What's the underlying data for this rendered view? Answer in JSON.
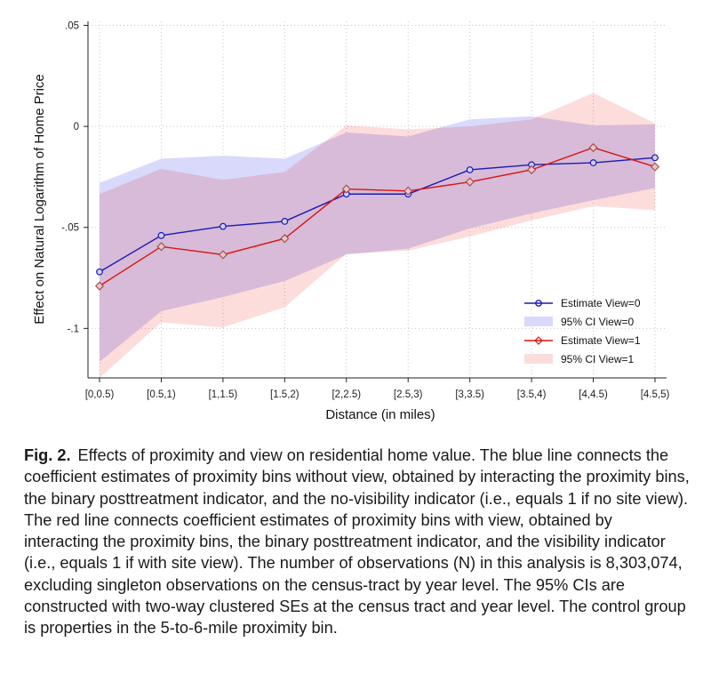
{
  "chart_data": {
    "type": "line",
    "xlabel": "Distance (in miles)",
    "ylabel": "Effect on Natural Logarithm of Home Price",
    "categories": [
      "[0,0.5)",
      "[0.5,1)",
      "[1,1.5)",
      "[1.5,2)",
      "[2,2.5)",
      "[2.5,3)",
      "[3,3.5)",
      "[3.5,4)",
      "[4,4.5)",
      "[4.5,5)"
    ],
    "ylim": [
      -0.1245,
      0.052
    ],
    "yticks": [
      0.05,
      0,
      -0.05,
      -0.1
    ],
    "ytick_labels": [
      ".05",
      "0",
      "-.05",
      "-.1"
    ],
    "grid": true,
    "legend_position": "bottom-right",
    "series": [
      {
        "name": "Estimate View=0",
        "color": "#1a1ab4",
        "marker": "circle",
        "values": [
          -0.072,
          -0.054,
          -0.0495,
          -0.047,
          -0.0335,
          -0.0335,
          -0.0215,
          -0.019,
          -0.018,
          -0.0155
        ],
        "ci_name": "95% CI View=0",
        "ci_color": "#d9d9fb",
        "ci_lower": [
          -0.1165,
          -0.0915,
          -0.0845,
          -0.0765,
          -0.0635,
          -0.0605,
          -0.0505,
          -0.043,
          -0.0365,
          -0.0305
        ],
        "ci_upper": [
          -0.028,
          -0.016,
          -0.0145,
          -0.016,
          -0.003,
          -0.005,
          0.0035,
          0.005,
          0.0005,
          0.001
        ]
      },
      {
        "name": "Estimate View=1",
        "color": "#dd1111",
        "marker": "diamond",
        "values": [
          -0.079,
          -0.0595,
          -0.0635,
          -0.0555,
          -0.031,
          -0.032,
          -0.0275,
          -0.0215,
          -0.0105,
          -0.02
        ],
        "ci_name": "95% CI View=1",
        "ci_color": "#fddcdc",
        "ci_lower": [
          -0.1245,
          -0.097,
          -0.0995,
          -0.0895,
          -0.063,
          -0.0615,
          -0.0545,
          -0.0465,
          -0.0395,
          -0.0415
        ],
        "ci_upper": [
          -0.0335,
          -0.021,
          -0.0265,
          -0.0225,
          0.0005,
          -0.0015,
          0.0,
          0.0035,
          0.0165,
          0.0015
        ]
      }
    ]
  },
  "caption": {
    "label": "Fig. 2.",
    "text": "Effects of proximity and view on residential home value. The blue line connects the coefficient estimates of proximity bins without view, obtained by interacting the proximity bins, the binary posttreatment indicator, and the no-visibility indicator (i.e., equals 1 if no site view). The red line connects coefficient estimates of proximity bins with view, obtained by interacting the proximity bins, the binary posttreatment indicator, and the visibility indicator (i.e., equals 1 if with site view). The number of observations (N) in this analysis is 8,303,074, excluding singleton observations on the census-tract by year level. The 95% CIs are constructed with two-way clustered SEs at the census tract and year level. The control group is properties in the 5-to-6-mile proximity bin."
  }
}
